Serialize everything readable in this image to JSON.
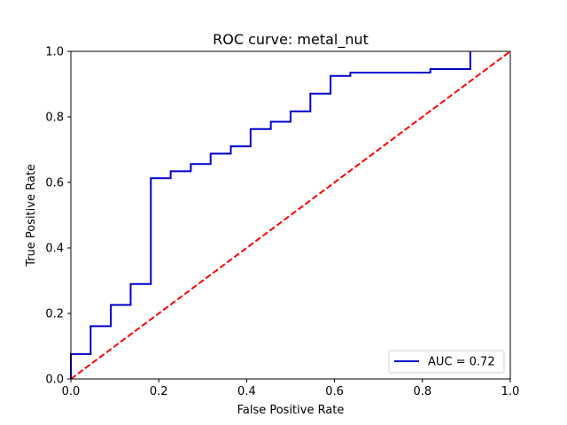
{
  "chart_data": {
    "type": "line",
    "title": "ROC curve: metal_nut",
    "xlabel": "False Positive Rate",
    "ylabel": "True Positive Rate",
    "xlim": [
      0.0,
      1.0
    ],
    "ylim": [
      0.0,
      1.0
    ],
    "x_ticks": [
      "0.0",
      "0.2",
      "0.4",
      "0.6",
      "0.8",
      "1.0"
    ],
    "y_ticks": [
      "0.0",
      "0.2",
      "0.4",
      "0.6",
      "0.8",
      "1.0"
    ],
    "grid": false,
    "legend_position": "lower-right",
    "series": [
      {
        "name": "AUC = 0.72",
        "color": "#0000cc",
        "style": "solid",
        "x": [
          0.0,
          0.0,
          0.045,
          0.045,
          0.091,
          0.091,
          0.136,
          0.136,
          0.182,
          0.182,
          0.227,
          0.227,
          0.273,
          0.273,
          0.318,
          0.318,
          0.364,
          0.364,
          0.409,
          0.409,
          0.455,
          0.455,
          0.5,
          0.5,
          0.545,
          0.545,
          0.591,
          0.591,
          0.636,
          0.636,
          0.818,
          0.818,
          0.909,
          0.909
        ],
        "y": [
          0.0,
          0.076,
          0.076,
          0.161,
          0.161,
          0.226,
          0.226,
          0.29,
          0.29,
          0.613,
          0.613,
          0.634,
          0.634,
          0.656,
          0.656,
          0.688,
          0.688,
          0.71,
          0.71,
          0.763,
          0.763,
          0.785,
          0.785,
          0.817,
          0.817,
          0.871,
          0.871,
          0.925,
          0.925,
          0.935,
          0.935,
          0.946,
          0.946,
          1.0
        ]
      },
      {
        "color": "#ff0000",
        "style": "dashed",
        "x": [
          0.0,
          1.0
        ],
        "y": [
          0.0,
          1.0
        ]
      }
    ]
  }
}
